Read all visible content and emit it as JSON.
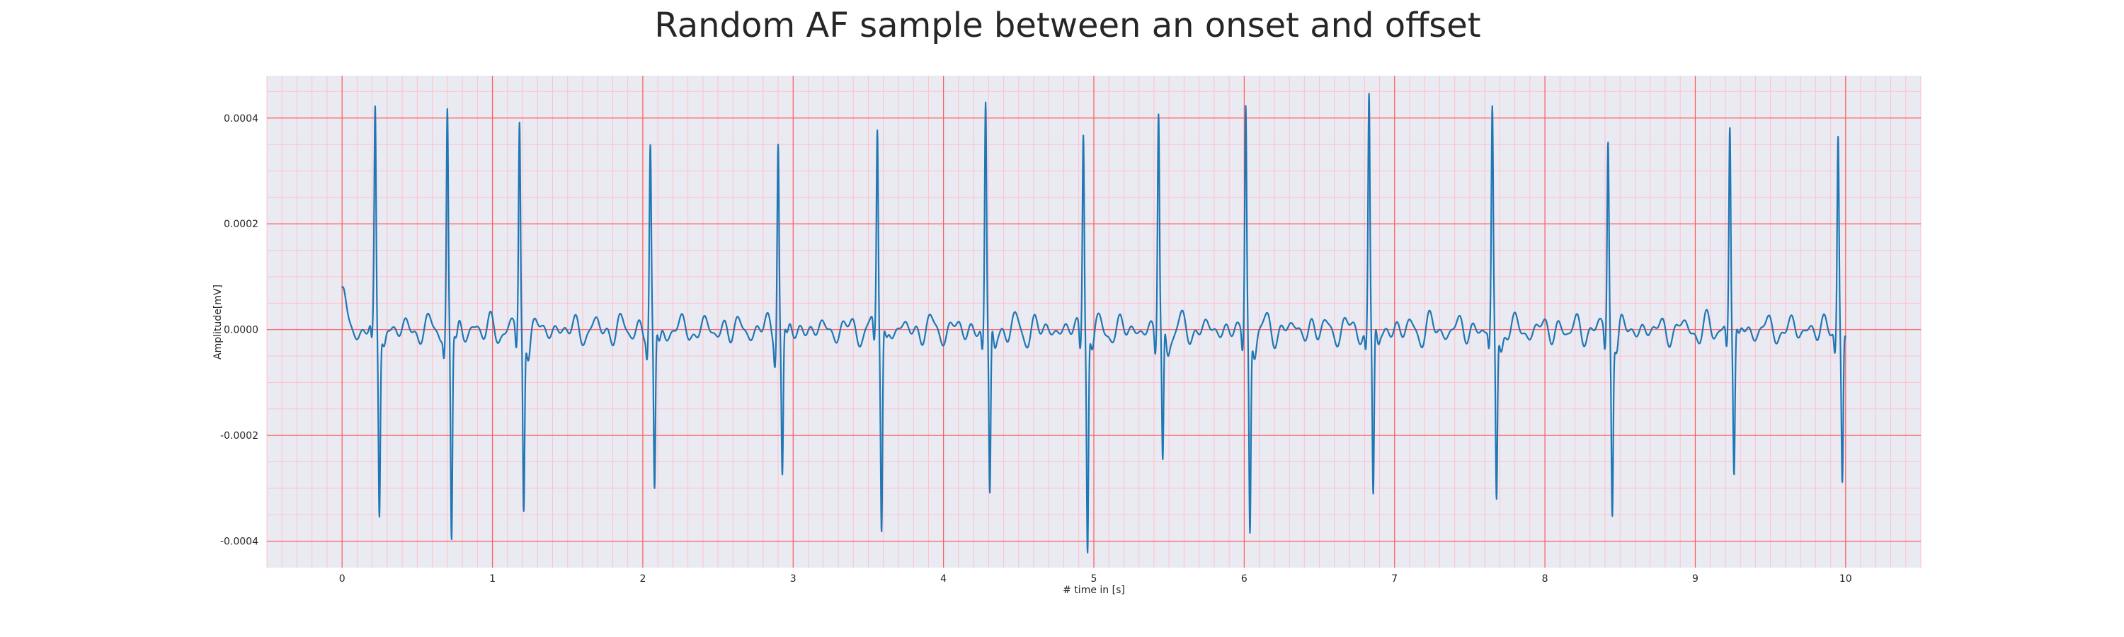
{
  "chart_data": {
    "type": "line",
    "title": "Random AF sample between an onset and offset",
    "xlabel": "# time in [s]",
    "ylabel": "Amplitude[mV]",
    "xlim": [
      -0.5,
      10.5
    ],
    "ylim": [
      -0.00045,
      0.00048
    ],
    "x_ticks": [
      0,
      1,
      2,
      3,
      4,
      5,
      6,
      7,
      8,
      9,
      10
    ],
    "x_tick_labels": [
      "0",
      "1",
      "2",
      "3",
      "4",
      "5",
      "6",
      "7",
      "8",
      "9",
      "10"
    ],
    "y_ticks": [
      -0.0004,
      -0.0002,
      0.0,
      0.0002,
      0.0004
    ],
    "y_tick_labels": [
      "-0.0004",
      "-0.0002",
      "0.0000",
      "0.0002",
      "0.0004"
    ],
    "grid": "major and minor",
    "legend": "none",
    "colors": {
      "line": "#1f77b4",
      "plot_background": "#eaeaf2",
      "major_grid": "#ff5a5a",
      "minor_grid": "#ffc0cb"
    },
    "beats": [
      {
        "t": 0.22,
        "peak": 0.000405,
        "trough": -0.000335
      },
      {
        "t": 0.7,
        "peak": 0.00041,
        "trough": -0.000395
      },
      {
        "t": 1.18,
        "peak": 0.000388,
        "trough": -0.000335
      },
      {
        "t": 2.05,
        "peak": 0.000338,
        "trough": -0.00031
      },
      {
        "t": 2.9,
        "peak": 0.00037,
        "trough": -0.000275
      },
      {
        "t": 3.56,
        "peak": 0.00039,
        "trough": -0.000368
      },
      {
        "t": 4.28,
        "peak": 0.000428,
        "trough": -0.000325
      },
      {
        "t": 4.93,
        "peak": 0.000387,
        "trough": -0.00041
      },
      {
        "t": 5.43,
        "peak": 0.000412,
        "trough": -0.000268
      },
      {
        "t": 6.01,
        "peak": 0.000414,
        "trough": -0.000382
      },
      {
        "t": 6.83,
        "peak": 0.000442,
        "trough": -0.000325
      },
      {
        "t": 7.65,
        "peak": 0.0004,
        "trough": -0.00032
      },
      {
        "t": 8.42,
        "peak": 0.000358,
        "trough": -0.00033
      },
      {
        "t": 9.23,
        "peak": 0.000393,
        "trough": -0.000262
      },
      {
        "t": 9.95,
        "peak": 0.000377,
        "trough": -0.000283
      }
    ],
    "series": [
      {
        "t_start": 0.0,
        "t_end": 10.0,
        "baseline_start": 5e-05,
        "baseline_amplitude": 2.5e-05
      }
    ]
  }
}
